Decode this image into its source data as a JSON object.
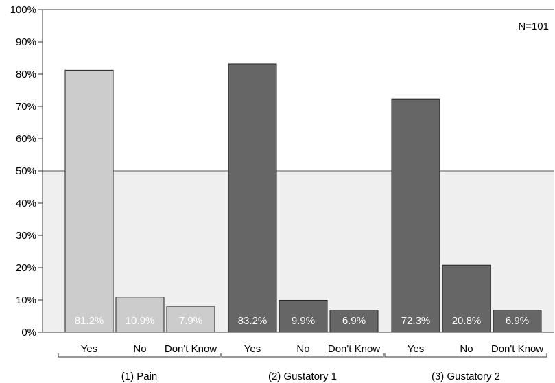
{
  "chart_data": {
    "type": "bar",
    "title": "",
    "xlabel": "",
    "ylabel": "",
    "ylim": [
      0,
      100
    ],
    "yticks": [
      0,
      10,
      20,
      30,
      40,
      50,
      60,
      70,
      80,
      90,
      100
    ],
    "ytick_format": "%",
    "reference_line": 50,
    "annotation": "N=101",
    "grid": false,
    "colors": {
      "light_bar": "#cccccc",
      "dark_bar": "#666666",
      "below_ref_bg": "#efefef",
      "above_ref_bg": "#ffffff",
      "bar_edge": "#222222"
    },
    "groups": [
      {
        "label": "(1) Pain",
        "style": "light",
        "bars": [
          {
            "category": "Yes",
            "value": 81.2,
            "label": "81.2%"
          },
          {
            "category": "No",
            "value": 10.9,
            "label": "10.9%"
          },
          {
            "category": "Don't Know",
            "value": 7.9,
            "label": "7.9%"
          }
        ]
      },
      {
        "label": "(2) Gustatory 1",
        "style": "dark",
        "bars": [
          {
            "category": "Yes",
            "value": 83.2,
            "label": "83.2%"
          },
          {
            "category": "No",
            "value": 9.9,
            "label": "9.9%"
          },
          {
            "category": "Don't Know",
            "value": 6.9,
            "label": "6.9%"
          }
        ]
      },
      {
        "label": "(3) Gustatory 2",
        "style": "dark",
        "bars": [
          {
            "category": "Yes",
            "value": 72.3,
            "label": "72.3%"
          },
          {
            "category": "No",
            "value": 20.8,
            "label": "20.8%"
          },
          {
            "category": "Don't Know",
            "value": 6.9,
            "label": "6.9%"
          }
        ]
      }
    ]
  }
}
